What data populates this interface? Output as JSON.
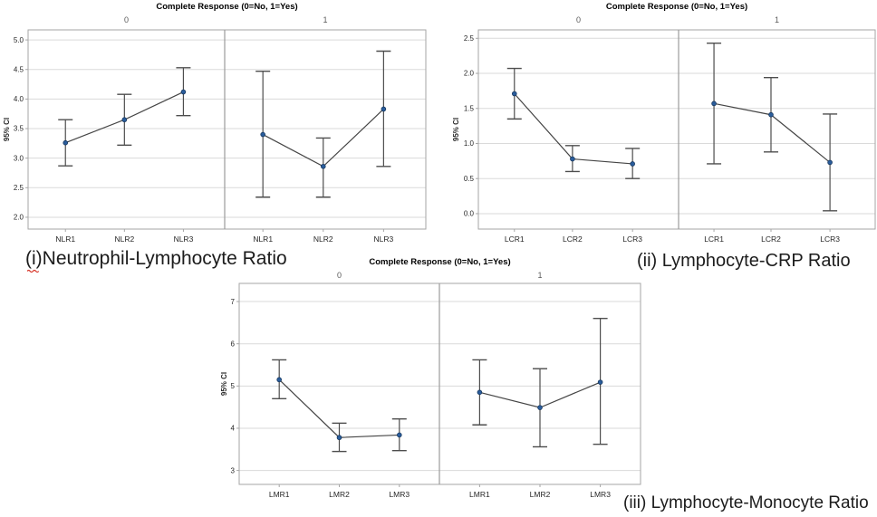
{
  "colors": {
    "background": "#ffffff",
    "grid": "#dadada",
    "frame": "#a6a6a6",
    "divider": "#9b9b9b",
    "error_bar": "#4d4d4d",
    "trend_line": "#454545",
    "point_fill": "#2a5d9c",
    "point_stroke": "#17375e",
    "panel_label": "#595959",
    "tick_label": "#262626",
    "category_label": "#262626",
    "title": "#000000",
    "caption": "#1c1c1c",
    "spellcheck": "#d83a2e"
  },
  "chart_data": [
    {
      "id": "nlr",
      "type": "errorbar-line",
      "title": "Complete Response (0=No, 1=Yes)",
      "caption": "(i)Neutrophil-Lymphocyte Ratio",
      "ylabel": "95% CI",
      "ylim": [
        1.8,
        5.17
      ],
      "yticks": [
        2.0,
        2.5,
        3.0,
        3.5,
        4.0,
        4.5,
        5.0
      ],
      "tick_decimals": 1,
      "grid": true,
      "legend": "none",
      "categories": [
        "NLR1",
        "NLR2",
        "NLR3"
      ],
      "panels": [
        {
          "label": "0",
          "points": [
            {
              "mean": 3.26,
              "lower": 2.87,
              "upper": 3.65
            },
            {
              "mean": 3.65,
              "lower": 3.22,
              "upper": 4.08
            },
            {
              "mean": 4.12,
              "lower": 3.72,
              "upper": 4.53
            }
          ]
        },
        {
          "label": "1",
          "points": [
            {
              "mean": 3.4,
              "lower": 2.34,
              "upper": 4.47
            },
            {
              "mean": 2.86,
              "lower": 2.34,
              "upper": 3.34
            },
            {
              "mean": 3.83,
              "lower": 2.86,
              "upper": 4.81
            }
          ]
        }
      ]
    },
    {
      "id": "lcr",
      "type": "errorbar-line",
      "title": "Complete Response (0=No, 1=Yes)",
      "caption": "(ii) Lymphocyte-CRP Ratio",
      "ylabel": "95% CI",
      "ylim": [
        -0.22,
        2.62
      ],
      "yticks": [
        0.0,
        0.5,
        1.0,
        1.5,
        2.0,
        2.5
      ],
      "tick_decimals": 1,
      "grid": true,
      "legend": "none",
      "categories": [
        "LCR1",
        "LCR2",
        "LCR3"
      ],
      "panels": [
        {
          "label": "0",
          "points": [
            {
              "mean": 1.71,
              "lower": 1.35,
              "upper": 2.07
            },
            {
              "mean": 0.78,
              "lower": 0.6,
              "upper": 0.97
            },
            {
              "mean": 0.71,
              "lower": 0.5,
              "upper": 0.93
            }
          ]
        },
        {
          "label": "1",
          "points": [
            {
              "mean": 1.57,
              "lower": 0.71,
              "upper": 2.43
            },
            {
              "mean": 1.41,
              "lower": 0.88,
              "upper": 1.94
            },
            {
              "mean": 0.73,
              "lower": 0.04,
              "upper": 1.42
            }
          ]
        }
      ]
    },
    {
      "id": "lmr",
      "type": "errorbar-line",
      "title": "Complete Response (0=No, 1=Yes)",
      "caption": "(iii) Lymphocyte-Monocyte Ratio",
      "ylabel": "95% CI",
      "ylim": [
        2.67,
        7.43
      ],
      "yticks": [
        3,
        4,
        5,
        6,
        7
      ],
      "tick_decimals": 0,
      "grid": true,
      "legend": "none",
      "categories": [
        "LMR1",
        "LMR2",
        "LMR3"
      ],
      "panels": [
        {
          "label": "0",
          "points": [
            {
              "mean": 5.15,
              "lower": 4.7,
              "upper": 5.62
            },
            {
              "mean": 3.78,
              "lower": 3.45,
              "upper": 4.12
            },
            {
              "mean": 3.84,
              "lower": 3.47,
              "upper": 4.22
            }
          ]
        },
        {
          "label": "1",
          "points": [
            {
              "mean": 4.85,
              "lower": 4.08,
              "upper": 5.62
            },
            {
              "mean": 4.49,
              "lower": 3.56,
              "upper": 5.41
            },
            {
              "mean": 5.09,
              "lower": 3.62,
              "upper": 6.6
            }
          ]
        }
      ]
    }
  ]
}
